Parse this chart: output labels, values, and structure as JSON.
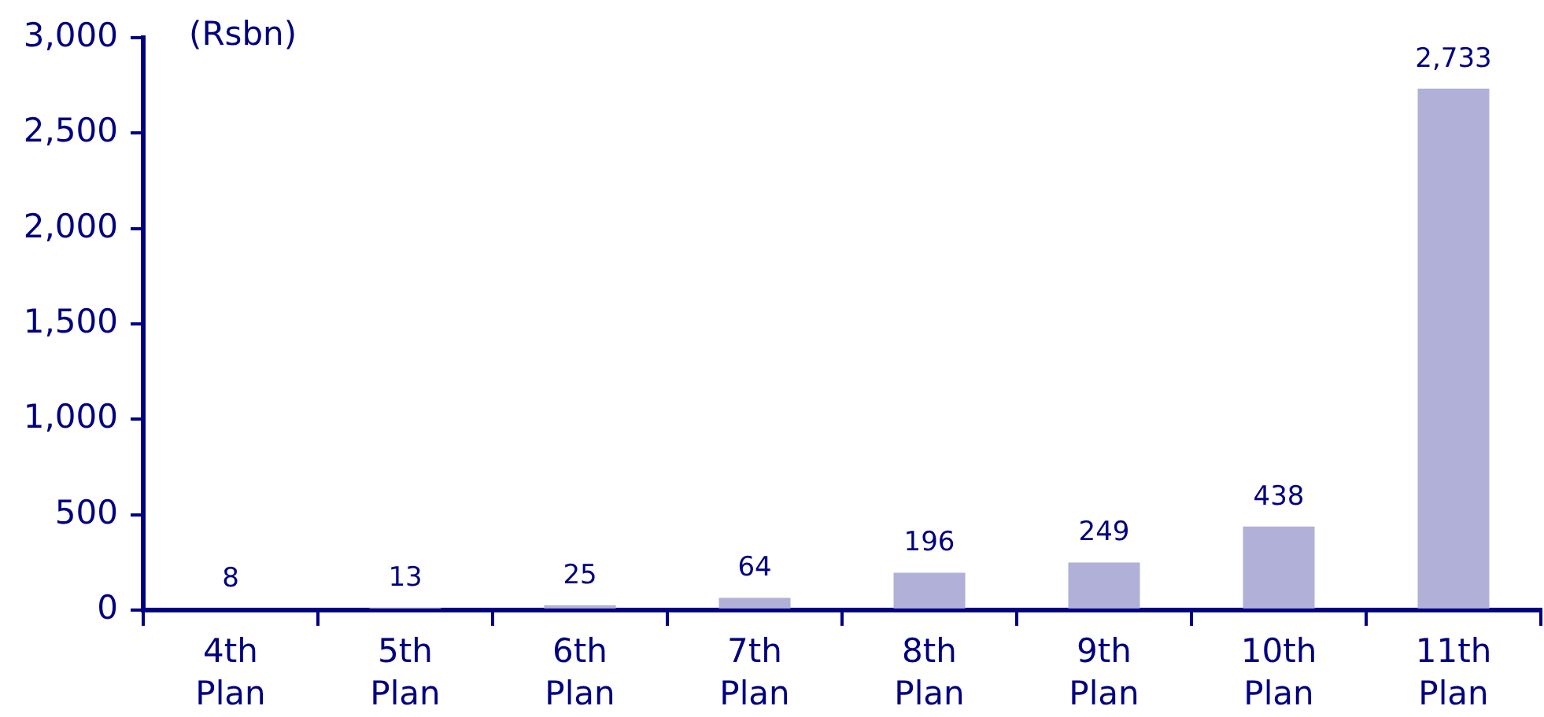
{
  "chart_data": {
    "type": "bar",
    "ylabel": "(Rsbn)",
    "categories": [
      "4th Plan",
      "5th Plan",
      "6th Plan",
      "7th Plan",
      "8th Plan",
      "9th Plan",
      "10th Plan",
      "11th Plan"
    ],
    "values": [
      8,
      13,
      25,
      64,
      196,
      249,
      438,
      2733
    ],
    "value_labels": [
      "8",
      "13",
      "25",
      "64",
      "196",
      "249",
      "438",
      "2,733"
    ],
    "color": "#b0b0d8",
    "ylim": [
      0,
      3000
    ],
    "yticks": [
      {
        "value": 0,
        "label": "0"
      },
      {
        "value": 500,
        "label": "500"
      },
      {
        "value": 1000,
        "label": "1,000"
      },
      {
        "value": 1500,
        "label": "1,500"
      },
      {
        "value": 2000,
        "label": "2,000"
      },
      {
        "value": 2500,
        "label": "2,500"
      },
      {
        "value": 3000,
        "label": "3,000"
      }
    ]
  }
}
